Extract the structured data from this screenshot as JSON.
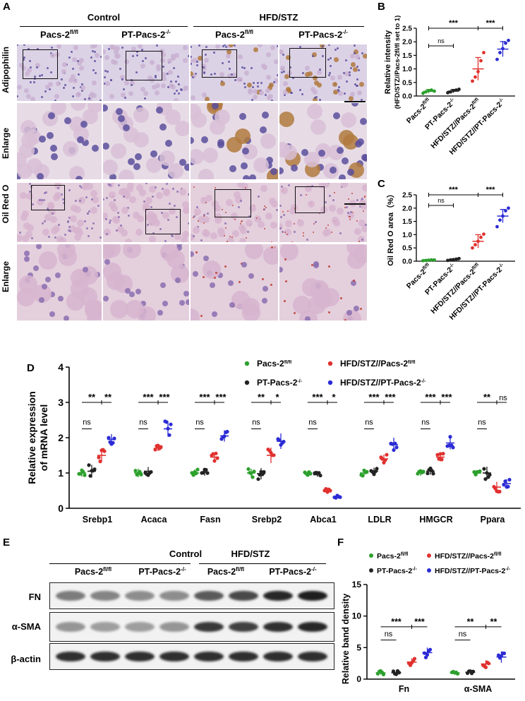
{
  "panelA": {
    "letter": "A",
    "groups": [
      "Control",
      "HFD/STZ"
    ],
    "columns": [
      {
        "base": "Pacs-2",
        "sup": "fl/fl"
      },
      {
        "base": "PT-Pacs-2",
        "sup": "-/-"
      },
      {
        "base": "Pacs-2",
        "sup": "fl/fl"
      },
      {
        "base": "PT-Pacs-2",
        "sup": "-/-"
      }
    ],
    "rows": [
      "Adipophilin",
      "Enlarge",
      "Oil Red O",
      "Enlarge"
    ],
    "colors": {
      "hematoxylin": "#b5a7cf",
      "dab": "#b07a3e",
      "oilred": "#c0392b",
      "pink": "#e6c9d6"
    }
  },
  "chart_data": [
    {
      "panel": "B",
      "type": "scatter",
      "ylabel_lines": [
        "Relative intensity",
        "(HFD/STZ//Pacs-2fl/fl set to 1)"
      ],
      "ylim": [
        0,
        2.5
      ],
      "yticks": [
        "0.0",
        "0.5",
        "1.0",
        "1.5",
        "2.0",
        "2.5"
      ],
      "categories": [
        "Pacs-2fl/fl",
        "PT-Pacs-2-/-",
        "HFD/STZ//Pacs-2fl/fl",
        "HFD/STZ//PT-Pacs-2-/-"
      ],
      "colors": [
        "#2ca02c",
        "#222222",
        "#e0312f",
        "#2b2bd6"
      ],
      "means": [
        0.17,
        0.18,
        1.0,
        1.73
      ],
      "sd": [
        0.07,
        0.06,
        0.42,
        0.28
      ],
      "points": [
        [
          0.1,
          0.15,
          0.2,
          0.22,
          0.18
        ],
        [
          0.12,
          0.15,
          0.2,
          0.22,
          0.25
        ],
        [
          0.55,
          0.7,
          0.9,
          1.3,
          1.6
        ],
        [
          1.35,
          1.6,
          1.75,
          1.95,
          2.05
        ]
      ],
      "comparisons": [
        {
          "pair": [
            0,
            1
          ],
          "label": "ns"
        },
        {
          "pair": [
            0,
            2
          ],
          "label": "***"
        },
        {
          "pair": [
            2,
            3
          ],
          "label": "***"
        }
      ]
    },
    {
      "panel": "C",
      "type": "scatter",
      "ylabel": "Oil Red O area（%）",
      "ylim": [
        0,
        2.5
      ],
      "yticks": [
        "0.0",
        "0.5",
        "1.0",
        "1.5",
        "2.0",
        "2.5"
      ],
      "categories": [
        "Pacs-2fl/fl",
        "PT-Pacs-2-/-",
        "HFD/STZ//Pacs-2fl/fl",
        "HFD/STZ//PT-Pacs-2-/-"
      ],
      "colors": [
        "#2ca02c",
        "#222222",
        "#e0312f",
        "#2b2bd6"
      ],
      "means": [
        0.04,
        0.05,
        0.75,
        1.7
      ],
      "sd": [
        0.02,
        0.03,
        0.25,
        0.25
      ],
      "points": [
        [
          0.02,
          0.03,
          0.04,
          0.05,
          0.05
        ],
        [
          0.03,
          0.05,
          0.06,
          0.08,
          0.1
        ],
        [
          0.5,
          0.62,
          0.75,
          0.9,
          1.02
        ],
        [
          1.3,
          1.55,
          1.7,
          1.9,
          2.0
        ]
      ],
      "comparisons": [
        {
          "pair": [
            0,
            1
          ],
          "label": "ns"
        },
        {
          "pair": [
            0,
            2
          ],
          "label": "***"
        },
        {
          "pair": [
            2,
            3
          ],
          "label": "***"
        }
      ]
    },
    {
      "panel": "D",
      "type": "scatter",
      "ylabel_lines": [
        "Relative expression",
        "of mRNA level"
      ],
      "ylim": [
        0,
        4
      ],
      "yticks": [
        "0",
        "1",
        "2",
        "3",
        "4"
      ],
      "categories": [
        "Srebp1",
        "Acaca",
        "Fasn",
        "Srebp2",
        "Abca1",
        "LDLR",
        "HMGCR",
        "Ppara"
      ],
      "legend": {
        "placement": "top-right",
        "entries": [
          {
            "base": "Pacs-2",
            "sup": "fl/fl"
          },
          {
            "base": "HFD/STZ//Pacs-2",
            "sup": "fl/fl"
          },
          {
            "base": "PT-Pacs-2",
            "sup": "-/-"
          },
          {
            "base": "HFD/STZ//PT-Pacs-2",
            "sup": "-/-"
          }
        ]
      },
      "series": [
        {
          "name": "Pacs-2fl/fl",
          "color": "#2ca02c",
          "means": [
            1.0,
            1.0,
            1.0,
            1.0,
            1.0,
            1.0,
            1.0,
            1.0
          ]
        },
        {
          "name": "PT-Pacs-2-/-",
          "color": "#222222",
          "means": [
            1.05,
            1.05,
            1.02,
            0.98,
            0.95,
            1.05,
            1.05,
            1.0
          ]
        },
        {
          "name": "HFD/STZ//Pacs-2fl/fl",
          "color": "#e0312f",
          "means": [
            1.5,
            1.7,
            1.45,
            1.5,
            0.5,
            1.4,
            1.45,
            0.6
          ]
        },
        {
          "name": "HFD/STZ//PT-Pacs-2-/-",
          "color": "#2b2bd6",
          "means": [
            1.95,
            2.25,
            2.05,
            1.9,
            0.32,
            1.8,
            1.85,
            0.7
          ]
        }
      ],
      "sd": [
        [
          0.1,
          0.12,
          0.1,
          0.12,
          0.06,
          0.08,
          0.08,
          0.08
        ],
        [
          0.18,
          0.12,
          0.1,
          0.16,
          0.06,
          0.1,
          0.1,
          0.18
        ],
        [
          0.2,
          0.08,
          0.12,
          0.22,
          0.06,
          0.12,
          0.12,
          0.15
        ],
        [
          0.15,
          0.22,
          0.16,
          0.22,
          0.04,
          0.2,
          0.18,
          0.12
        ]
      ],
      "significance": [
        {
          "gene": "Srebp1",
          "ns": "ns",
          "stars": [
            "**",
            "**"
          ]
        },
        {
          "gene": "Acaca",
          "ns": "ns",
          "stars": [
            "***",
            "***"
          ]
        },
        {
          "gene": "Fasn",
          "ns": "ns",
          "stars": [
            "***",
            "***"
          ]
        },
        {
          "gene": "Srebp2",
          "ns": "ns",
          "stars": [
            "**",
            "*"
          ]
        },
        {
          "gene": "Abca1",
          "ns": "ns",
          "stars": [
            "***",
            "*"
          ]
        },
        {
          "gene": "LDLR",
          "ns": "ns",
          "stars": [
            "***",
            "***"
          ]
        },
        {
          "gene": "HMGCR",
          "ns": "ns",
          "stars": [
            "***",
            "***"
          ]
        },
        {
          "gene": "Ppara",
          "ns": "ns",
          "stars": [
            "**",
            "ns"
          ]
        }
      ]
    },
    {
      "panel": "F",
      "type": "scatter",
      "ylabel": "Relative band density",
      "ylim": [
        0,
        15
      ],
      "yticks": [
        "0",
        "5",
        "10",
        "15"
      ],
      "categories": [
        "Fn",
        "α-SMA"
      ],
      "legend": {
        "placement": "top",
        "entries": [
          {
            "base": "Pacs-2",
            "sup": "fl/fl"
          },
          {
            "base": "HFD/STZ//Pacs-2",
            "sup": "fl/fl"
          },
          {
            "base": "PT-Pacs-2",
            "sup": "-/-"
          },
          {
            "base": "HFD/STZ//PT-Pacs-2",
            "sup": "-/-"
          }
        ]
      },
      "series": [
        {
          "name": "Pacs-2fl/fl",
          "color": "#2ca02c",
          "means": [
            1.0,
            1.0
          ]
        },
        {
          "name": "PT-Pacs-2-/-",
          "color": "#222222",
          "means": [
            1.0,
            1.1
          ]
        },
        {
          "name": "HFD/STZ//Pacs-2fl/fl",
          "color": "#e0312f",
          "means": [
            2.7,
            2.4
          ]
        },
        {
          "name": "HFD/STZ//PT-Pacs-2-/-",
          "color": "#2b2bd6",
          "means": [
            4.2,
            3.5
          ]
        }
      ],
      "sd": [
        [
          0.3,
          0.2
        ],
        [
          0.3,
          0.2
        ],
        [
          0.6,
          0.6
        ],
        [
          0.8,
          0.9
        ]
      ],
      "significance": [
        {
          "cat": "Fn",
          "ns": "ns",
          "stars": [
            "***",
            "***"
          ]
        },
        {
          "cat": "α-SMA",
          "ns": "ns",
          "stars": [
            "**",
            "**"
          ]
        }
      ]
    }
  ],
  "panelE": {
    "letter": "E",
    "groups": [
      "Control",
      "HFD/STZ"
    ],
    "columns": [
      {
        "base": "Pacs-2",
        "sup": "fl/fl"
      },
      {
        "base": "PT-Pacs-2",
        "sup": "-/-"
      },
      {
        "base": "Pacs-2",
        "sup": "fl/fl"
      },
      {
        "base": "PT-Pacs-2",
        "sup": "-/-"
      }
    ],
    "proteins": [
      "FN",
      "α-SMA",
      "β-actin"
    ],
    "band_intensity": [
      [
        0.45,
        0.4,
        0.35,
        0.35,
        0.65,
        0.75,
        0.95,
        1.0
      ],
      [
        0.3,
        0.25,
        0.25,
        0.3,
        0.85,
        0.8,
        0.9,
        0.95
      ],
      [
        0.9,
        0.9,
        0.9,
        0.9,
        0.9,
        0.9,
        0.9,
        0.9
      ]
    ]
  },
  "letters": {
    "B": "B",
    "C": "C",
    "D": "D",
    "F": "F"
  }
}
